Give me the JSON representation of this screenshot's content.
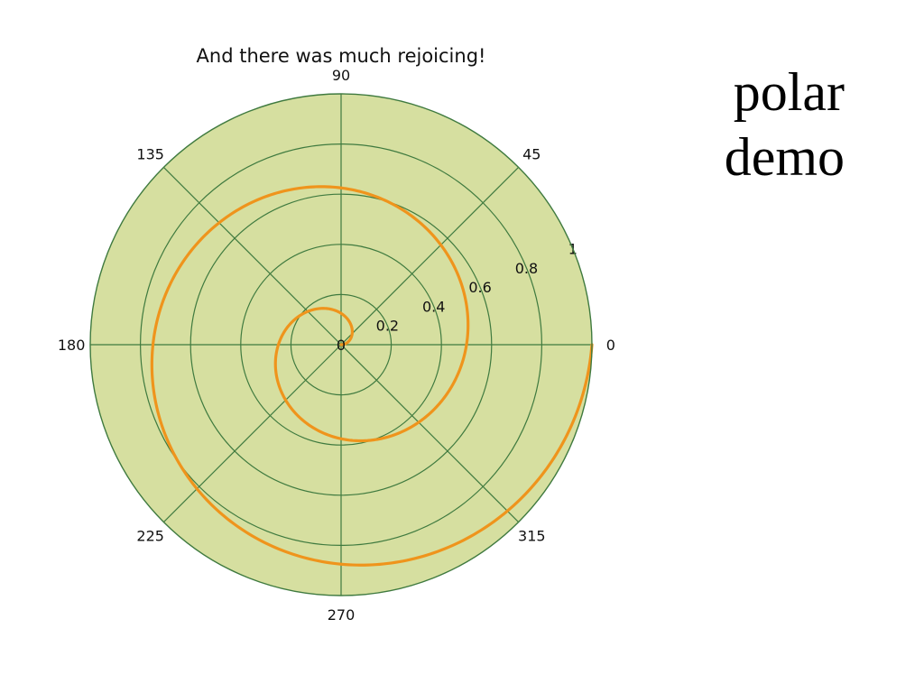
{
  "side_title": {
    "line1": "polar",
    "line2": "demo"
  },
  "colors": {
    "background": "#d6dfa0",
    "grid": "#3f7a3f",
    "line": "#ef941c"
  },
  "chart_data": {
    "type": "line",
    "projection": "polar",
    "title": "And there was much rejoicing!",
    "series": [
      {
        "name": "",
        "equation": "r = theta / (4*pi)",
        "theta_deg_range": [
          0,
          720
        ],
        "x": [
          0,
          45,
          90,
          135,
          180,
          225,
          270,
          315,
          360,
          405,
          450,
          495,
          540,
          585,
          630,
          675,
          720
        ],
        "y": [
          0,
          0.0625,
          0.125,
          0.1875,
          0.25,
          0.3125,
          0.375,
          0.4375,
          0.5,
          0.5625,
          0.625,
          0.6875,
          0.75,
          0.8125,
          0.875,
          0.9375,
          1.0
        ]
      }
    ],
    "theta_ticks": [
      "0",
      "45",
      "90",
      "135",
      "180",
      "225",
      "270",
      "315"
    ],
    "theta_tick_values": [
      0,
      45,
      90,
      135,
      180,
      225,
      270,
      315
    ],
    "r_ticks": [
      "0.2",
      "0.4",
      "0.6",
      "0.8",
      "1"
    ],
    "r_tick_values": [
      0.2,
      0.4,
      0.6,
      0.8,
      1.0
    ],
    "r_origin_label": "0",
    "rlim": [
      0,
      1
    ],
    "grid": true
  }
}
